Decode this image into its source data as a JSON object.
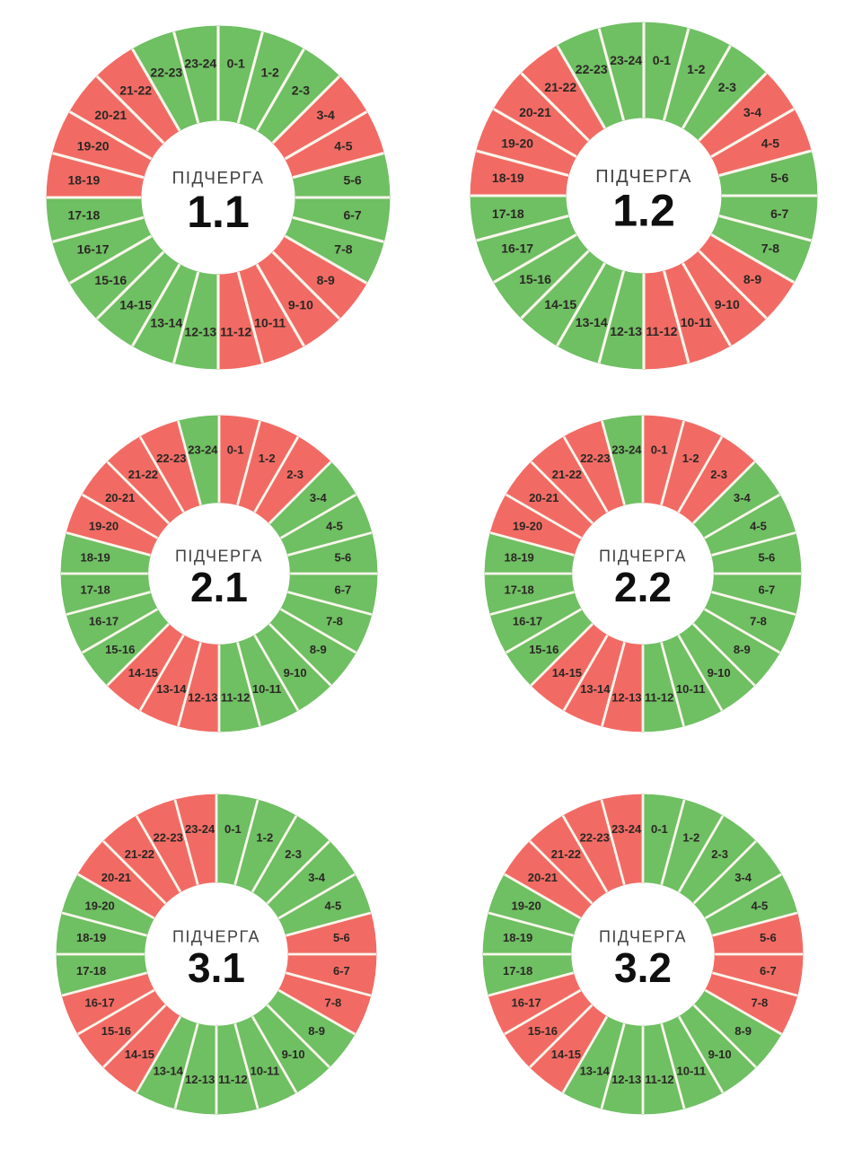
{
  "page": {
    "background": "#ffffff"
  },
  "colors": {
    "green": "#6fbf63",
    "red": "#f16b64",
    "divider": "#faf6ec",
    "hour_label": "#2b2724",
    "center_title": "#404040",
    "center_value": "#0f0f0f"
  },
  "chart_data": {
    "type": "donut",
    "grid_layout": "2 columns x 3 rows",
    "center_title": "ПІДЧЕРГА",
    "categories": [
      "0-1",
      "1-2",
      "2-3",
      "3-4",
      "4-5",
      "5-6",
      "6-7",
      "7-8",
      "8-9",
      "9-10",
      "10-11",
      "11-12",
      "12-13",
      "13-14",
      "14-15",
      "15-16",
      "16-17",
      "17-18",
      "18-19",
      "19-20",
      "20-21",
      "21-22",
      "22-23",
      "23-24"
    ],
    "charts": [
      {
        "center_value": "1.1",
        "statuses": [
          "green",
          "green",
          "green",
          "red",
          "red",
          "green",
          "green",
          "green",
          "red",
          "red",
          "red",
          "red",
          "green",
          "green",
          "green",
          "green",
          "green",
          "green",
          "red",
          "red",
          "red",
          "red",
          "green",
          "green"
        ]
      },
      {
        "center_value": "1.2",
        "statuses": [
          "green",
          "green",
          "green",
          "red",
          "red",
          "green",
          "green",
          "green",
          "red",
          "red",
          "red",
          "red",
          "green",
          "green",
          "green",
          "green",
          "green",
          "green",
          "red",
          "red",
          "red",
          "red",
          "green",
          "green"
        ]
      },
      {
        "center_value": "2.1",
        "statuses": [
          "red",
          "red",
          "red",
          "green",
          "green",
          "green",
          "green",
          "green",
          "green",
          "green",
          "green",
          "green",
          "red",
          "red",
          "red",
          "green",
          "green",
          "green",
          "green",
          "red",
          "red",
          "red",
          "red",
          "green"
        ]
      },
      {
        "center_value": "2.2",
        "statuses": [
          "red",
          "red",
          "red",
          "green",
          "green",
          "green",
          "green",
          "green",
          "green",
          "green",
          "green",
          "green",
          "red",
          "red",
          "red",
          "green",
          "green",
          "green",
          "green",
          "red",
          "red",
          "red",
          "red",
          "green"
        ]
      },
      {
        "center_value": "3.1",
        "statuses": [
          "green",
          "green",
          "green",
          "green",
          "green",
          "red",
          "red",
          "red",
          "green",
          "green",
          "green",
          "green",
          "green",
          "green",
          "red",
          "red",
          "red",
          "green",
          "green",
          "green",
          "red",
          "red",
          "red",
          "red"
        ]
      },
      {
        "center_value": "3.2",
        "statuses": [
          "green",
          "green",
          "green",
          "green",
          "green",
          "red",
          "red",
          "red",
          "green",
          "green",
          "green",
          "green",
          "green",
          "green",
          "red",
          "red",
          "red",
          "green",
          "green",
          "green",
          "red",
          "red",
          "red",
          "red"
        ]
      }
    ]
  }
}
